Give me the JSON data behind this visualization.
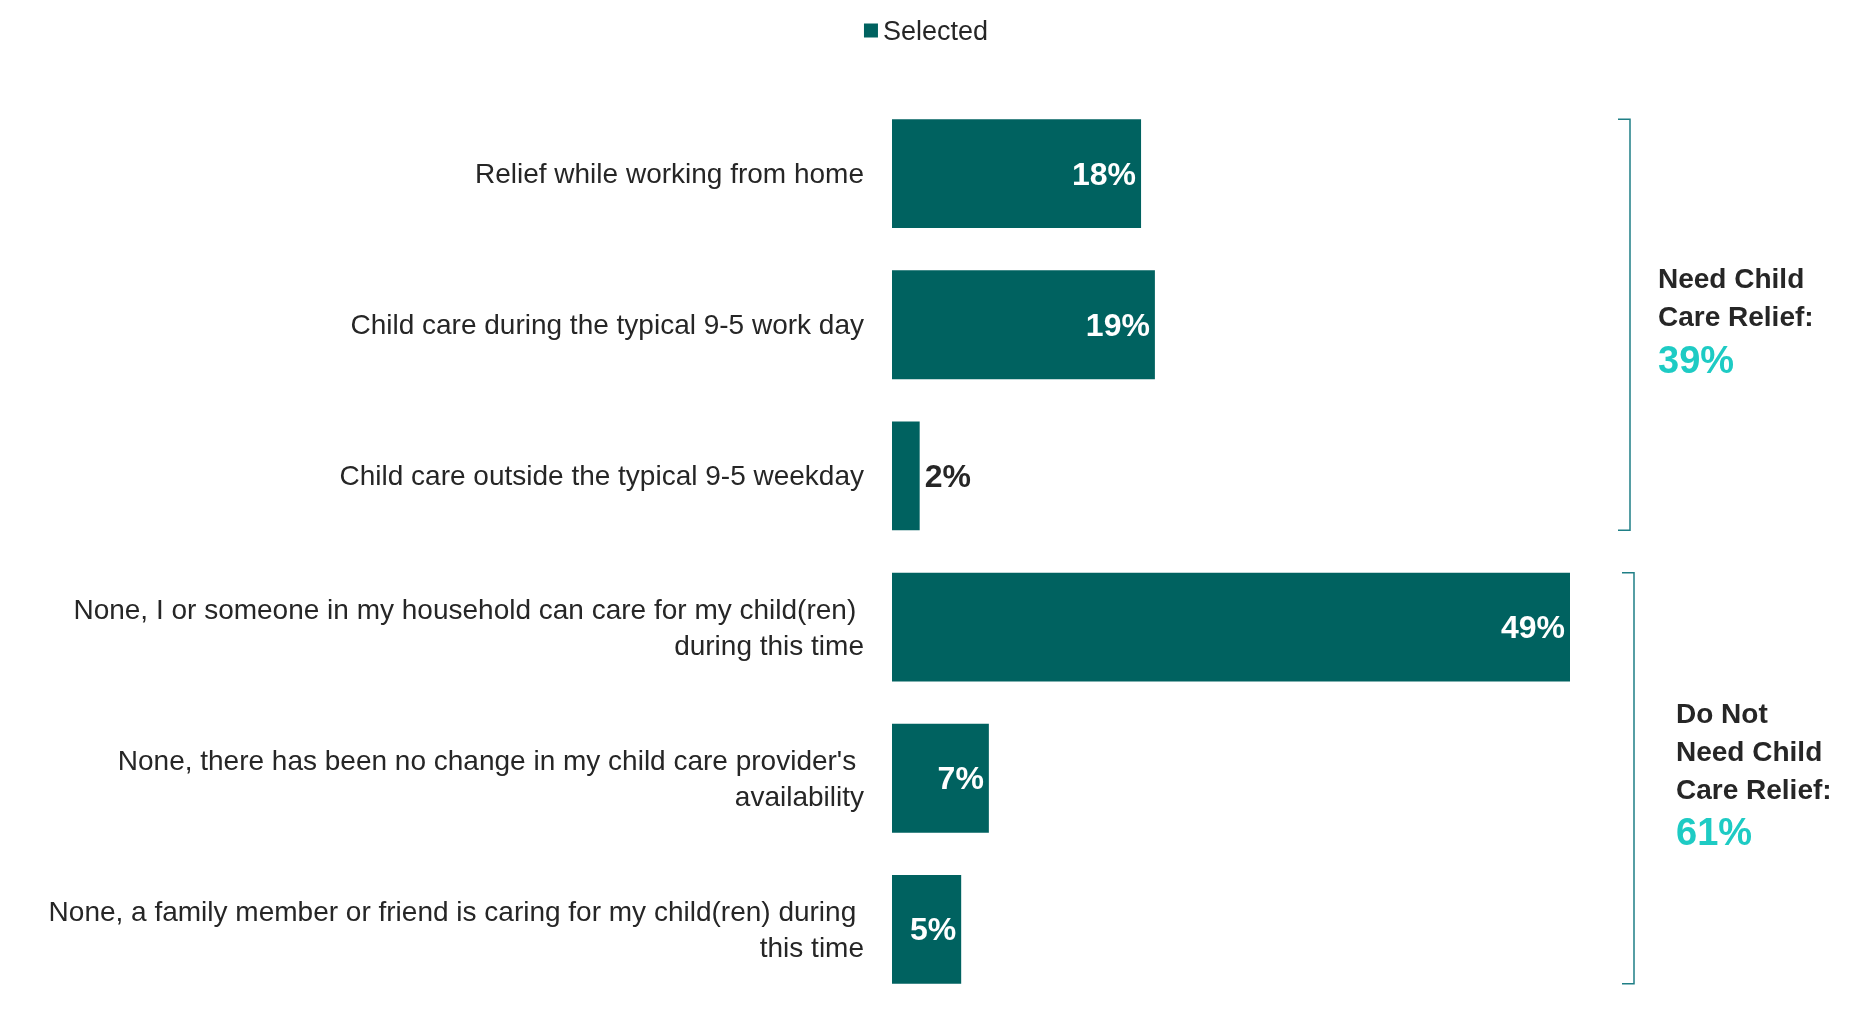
{
  "chart_data": {
    "type": "bar",
    "orientation": "horizontal",
    "categories": [
      "Relief while working from home",
      "Child care during the typical 9-5 work day",
      "Child care outside the typical 9-5 weekday",
      "None, I or someone in my household can care for my child(ren) during this time",
      "None, there has been no change in my child care provider's availability",
      "None, a family member or friend is caring for my child(ren) during this time"
    ],
    "series": [
      {
        "name": "Selected",
        "color": "#006260",
        "values": [
          18,
          19,
          2,
          49,
          7,
          5
        ],
        "value_labels": [
          "18%",
          "19%",
          "2%",
          "49%",
          "7%",
          "5%"
        ]
      }
    ],
    "legend": "top",
    "annotations": [
      "Need Child Care Relief: 39%",
      "Do Not Need Child Care Relief: 61%"
    ]
  }
}
